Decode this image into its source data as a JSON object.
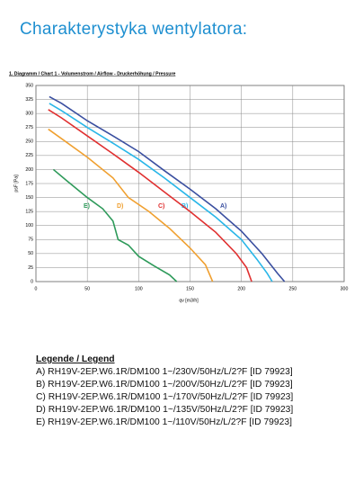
{
  "page_title": "Charakterystyka wentylatora:",
  "chart_data": {
    "type": "line",
    "title": "1. Diagramm / Chart 1 - Volumenstrom / Airflow - Druckerhöhung / Pressure",
    "x_label": "qv [m3/h]",
    "y_label": "psF [Pa]",
    "xlim": [
      0,
      300
    ],
    "xticks": [
      0,
      50,
      100,
      150,
      200,
      250,
      300
    ],
    "ylim": [
      0,
      350
    ],
    "yticks": [
      0,
      25,
      50,
      75,
      100,
      125,
      150,
      175,
      200,
      225,
      250,
      275,
      300,
      325,
      350
    ],
    "grid": true,
    "series": [
      {
        "name": "A)",
        "color": "#3a4fa0",
        "x": [
          13,
          25,
          50,
          75,
          100,
          125,
          150,
          175,
          200,
          220,
          235,
          242
        ],
        "values": [
          330,
          318,
          287,
          260,
          232,
          198,
          165,
          130,
          90,
          50,
          15,
          0
        ]
      },
      {
        "name": "B)",
        "color": "#29b6e8",
        "x": [
          13,
          25,
          50,
          75,
          100,
          125,
          150,
          175,
          200,
          215,
          225,
          230
        ],
        "values": [
          318,
          305,
          275,
          247,
          218,
          185,
          150,
          115,
          75,
          40,
          15,
          0
        ]
      },
      {
        "name": "C)",
        "color": "#e03030",
        "x": [
          12,
          25,
          50,
          75,
          100,
          125,
          150,
          175,
          195,
          205,
          210
        ],
        "values": [
          307,
          292,
          260,
          228,
          195,
          160,
          125,
          88,
          50,
          25,
          0
        ]
      },
      {
        "name": "D)",
        "color": "#f0a030",
        "x": [
          12,
          25,
          50,
          75,
          90,
          110,
          130,
          150,
          165,
          172
        ],
        "values": [
          272,
          255,
          222,
          185,
          150,
          125,
          95,
          60,
          30,
          0
        ]
      },
      {
        "name": "E)",
        "color": "#2e9a5a",
        "x": [
          17,
          30,
          50,
          65,
          75,
          80,
          90,
          100,
          115,
          130,
          137
        ],
        "values": [
          200,
          180,
          150,
          130,
          108,
          75,
          65,
          45,
          28,
          12,
          0
        ]
      }
    ]
  },
  "legend": {
    "title": "Legende / Legend",
    "entries": [
      "A) RH19V-2EP.W6.1R/DM100 1~/230V/50Hz/L/2?F [ID 79923]",
      "B) RH19V-2EP.W6.1R/DM100 1~/200V/50Hz/L/2?F [ID 79923]",
      "C) RH19V-2EP.W6.1R/DM100 1~/170V/50Hz/L/2?F [ID 79923]",
      "D) RH19V-2EP.W6.1R/DM100 1~/135V/50Hz/L/2?F [ID 79923]",
      "E) RH19V-2EP.W6.1R/DM100 1~/110V/50Hz/L/2?F [ID 79923]"
    ]
  }
}
